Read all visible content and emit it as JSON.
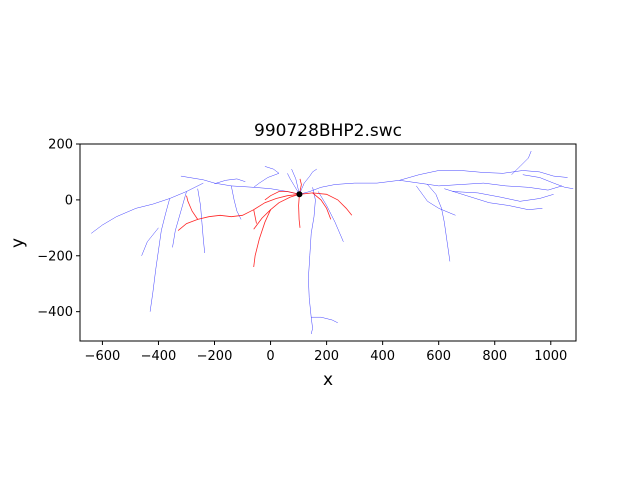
{
  "chart_data": {
    "type": "line",
    "title": "990728BHP2.swc",
    "xlabel": "x",
    "ylabel": "y",
    "xlim": [
      -680,
      1090
    ],
    "ylim": [
      -505,
      200
    ],
    "xticks": [
      -600,
      -400,
      -200,
      0,
      200,
      400,
      600,
      800,
      1000
    ],
    "yticks": [
      -400,
      -200,
      0,
      200
    ],
    "xtick_labels": [
      "−600",
      "−400",
      "−200",
      "0",
      "200",
      "400",
      "600",
      "800",
      "1000"
    ],
    "ytick_labels": [
      "−400",
      "−200",
      "0",
      "200"
    ],
    "grid": false,
    "soma": {
      "x": 103,
      "y": 20,
      "color": "#000000"
    },
    "series": [
      {
        "color": "#0000ff",
        "branches": [
          [
            [
              103,
              20
            ],
            [
              60,
              30
            ],
            [
              0,
              40
            ],
            [
              -60,
              45
            ],
            [
              -140,
              50
            ],
            [
              -200,
              60
            ],
            [
              -240,
              72
            ],
            [
              -290,
              80
            ],
            [
              -320,
              85
            ]
          ],
          [
            [
              -240,
              60
            ],
            [
              -300,
              30
            ],
            [
              -360,
              5
            ],
            [
              -420,
              -15
            ],
            [
              -480,
              -30
            ],
            [
              -550,
              -60
            ],
            [
              -600,
              -90
            ],
            [
              -640,
              -120
            ]
          ],
          [
            [
              -360,
              5
            ],
            [
              -375,
              -50
            ],
            [
              -390,
              -110
            ],
            [
              -400,
              -180
            ],
            [
              -410,
              -250
            ],
            [
              -420,
              -330
            ],
            [
              -430,
              -400
            ]
          ],
          [
            [
              -300,
              30
            ],
            [
              -320,
              -40
            ],
            [
              -340,
              -110
            ],
            [
              -350,
              -170
            ]
          ],
          [
            [
              -260,
              40
            ],
            [
              -250,
              -20
            ],
            [
              -245,
              -80
            ],
            [
              -240,
              -140
            ],
            [
              -235,
              -190
            ]
          ],
          [
            [
              -200,
              58
            ],
            [
              -160,
              70
            ],
            [
              -120,
              75
            ],
            [
              -90,
              65
            ]
          ],
          [
            [
              -60,
              45
            ],
            [
              -40,
              60
            ],
            [
              -10,
              80
            ],
            [
              30,
              95
            ]
          ],
          [
            [
              103,
              20
            ],
            [
              140,
              30
            ],
            [
              180,
              45
            ],
            [
              230,
              55
            ],
            [
              300,
              60
            ],
            [
              380,
              60
            ]
          ],
          [
            [
              380,
              60
            ],
            [
              460,
              70
            ],
            [
              530,
              90
            ],
            [
              600,
              105
            ],
            [
              680,
              105
            ],
            [
              760,
              98
            ],
            [
              830,
              95
            ],
            [
              900,
              105
            ],
            [
              960,
              100
            ],
            [
              1010,
              85
            ],
            [
              1060,
              80
            ]
          ],
          [
            [
              460,
              70
            ],
            [
              530,
              60
            ],
            [
              600,
              50
            ],
            [
              680,
              55
            ],
            [
              760,
              60
            ],
            [
              840,
              50
            ],
            [
              920,
              45
            ],
            [
              990,
              35
            ],
            [
              1040,
              50
            ]
          ],
          [
            [
              560,
              55
            ],
            [
              590,
              20
            ],
            [
              610,
              -30
            ],
            [
              620,
              -80
            ],
            [
              630,
              -150
            ],
            [
              640,
              -220
            ]
          ],
          [
            [
              520,
              50
            ],
            [
              560,
              -5
            ],
            [
              600,
              -30
            ],
            [
              660,
              -55
            ]
          ],
          [
            [
              620,
              40
            ],
            [
              700,
              15
            ],
            [
              780,
              -10
            ],
            [
              850,
              -20
            ],
            [
              920,
              -35
            ],
            [
              970,
              -30
            ]
          ],
          [
            [
              650,
              30
            ],
            [
              740,
              25
            ],
            [
              820,
              10
            ],
            [
              890,
              -5
            ],
            [
              960,
              5
            ],
            [
              1010,
              20
            ]
          ],
          [
            [
              860,
              90
            ],
            [
              890,
              120
            ],
            [
              920,
              150
            ],
            [
              930,
              175
            ]
          ],
          [
            [
              900,
              90
            ],
            [
              960,
              80
            ],
            [
              1010,
              60
            ],
            [
              1050,
              45
            ],
            [
              1080,
              40
            ]
          ],
          [
            [
              103,
              20
            ],
            [
              120,
              60
            ],
            [
              140,
              85
            ],
            [
              150,
              100
            ],
            [
              165,
              110
            ]
          ],
          [
            [
              103,
              20
            ],
            [
              85,
              50
            ],
            [
              70,
              75
            ],
            [
              60,
              95
            ]
          ],
          [
            [
              150,
              45
            ],
            [
              160,
              0
            ],
            [
              155,
              -60
            ],
            [
              145,
              -120
            ],
            [
              140,
              -200
            ],
            [
              135,
              -280
            ],
            [
              138,
              -350
            ],
            [
              145,
              -420
            ],
            [
              150,
              -460
            ],
            [
              145,
              -480
            ]
          ],
          [
            [
              145,
              -420
            ],
            [
              180,
              -420
            ],
            [
              220,
              -430
            ],
            [
              240,
              -440
            ]
          ],
          [
            [
              170,
              30
            ],
            [
              200,
              -20
            ],
            [
              230,
              -80
            ],
            [
              260,
              -150
            ]
          ],
          [
            [
              30,
              95
            ],
            [
              10,
              110
            ],
            [
              -20,
              120
            ]
          ],
          [
            [
              103,
              20
            ],
            [
              90,
              75
            ],
            [
              75,
              110
            ]
          ],
          [
            [
              -140,
              50
            ],
            [
              -130,
              0
            ],
            [
              -120,
              -40
            ],
            [
              -105,
              -70
            ]
          ],
          [
            [
              -400,
              -100
            ],
            [
              -440,
              -150
            ],
            [
              -460,
              -200
            ]
          ]
        ]
      },
      {
        "color": "#ff0000",
        "branches": [
          [
            [
              103,
              20
            ],
            [
              60,
              15
            ],
            [
              20,
              5
            ],
            [
              -20,
              -10
            ],
            [
              -60,
              -35
            ],
            [
              -100,
              -55
            ],
            [
              -140,
              -60
            ],
            [
              -180,
              -55
            ],
            [
              -220,
              -60
            ],
            [
              -260,
              -70
            ],
            [
              -300,
              -85
            ],
            [
              -330,
              -110
            ]
          ],
          [
            [
              -260,
              -70
            ],
            [
              -280,
              -40
            ],
            [
              -295,
              -5
            ],
            [
              -300,
              15
            ]
          ],
          [
            [
              103,
              20
            ],
            [
              70,
              10
            ],
            [
              30,
              -10
            ],
            [
              0,
              -35
            ],
            [
              -30,
              -65
            ],
            [
              -60,
              -105
            ]
          ],
          [
            [
              0,
              -35
            ],
            [
              -20,
              -80
            ],
            [
              -40,
              -140
            ],
            [
              -55,
              -200
            ],
            [
              -60,
              -240
            ]
          ],
          [
            [
              103,
              20
            ],
            [
              150,
              25
            ],
            [
              200,
              20
            ],
            [
              240,
              0
            ],
            [
              270,
              -30
            ],
            [
              290,
              -55
            ]
          ],
          [
            [
              103,
              20
            ],
            [
              110,
              55
            ],
            [
              105,
              75
            ]
          ],
          [
            [
              103,
              20
            ],
            [
              100,
              -20
            ],
            [
              102,
              -70
            ],
            [
              105,
              -100
            ]
          ],
          [
            [
              103,
              20
            ],
            [
              60,
              30
            ],
            [
              30,
              30
            ],
            [
              0,
              15
            ],
            [
              -20,
              0
            ]
          ],
          [
            [
              150,
              25
            ],
            [
              180,
              0
            ],
            [
              200,
              -30
            ],
            [
              215,
              -70
            ]
          ],
          [
            [
              -60,
              -35
            ],
            [
              -55,
              -60
            ],
            [
              -50,
              -85
            ]
          ]
        ]
      }
    ]
  }
}
